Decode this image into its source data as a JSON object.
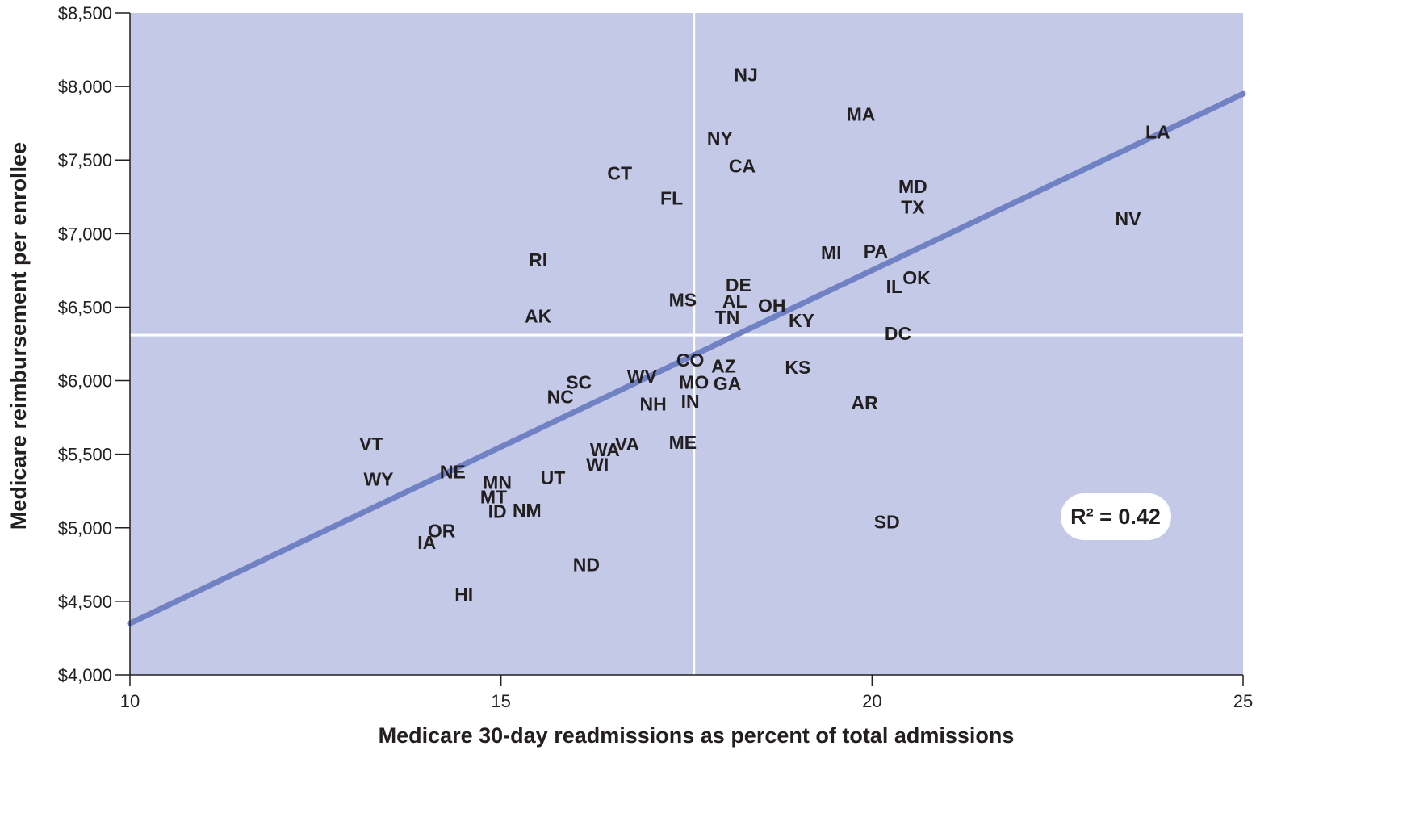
{
  "chart_data": {
    "type": "scatter",
    "title": "",
    "xlabel": "Medicare 30-day readmissions as percent of total admissions",
    "ylabel": "Medicare reimbursement per enrollee",
    "xlim": [
      10,
      25
    ],
    "ylim": [
      4000,
      8500
    ],
    "x_ticks": [
      10,
      15,
      20,
      25
    ],
    "x_tick_labels": [
      "10",
      "15",
      "20",
      "25"
    ],
    "y_ticks": [
      4000,
      4500,
      5000,
      5500,
      6000,
      6500,
      7000,
      7500,
      8000,
      8500
    ],
    "y_tick_labels": [
      "$4,000",
      "$4,500",
      "$5,000",
      "$5,500",
      "$6,000",
      "$6,500",
      "$7,000",
      "$7,500",
      "$8,000",
      "$8,500"
    ],
    "reference_lines": {
      "x": 17.6,
      "y": 6310
    },
    "trendline": {
      "x": [
        10,
        25
      ],
      "y": [
        4350,
        7950
      ]
    },
    "annotation": "R² = 0.42",
    "points": [
      {
        "label": "NJ",
        "x": 18.3,
        "y": 8080
      },
      {
        "label": "MA",
        "x": 19.85,
        "y": 7810
      },
      {
        "label": "LA",
        "x": 23.85,
        "y": 7690
      },
      {
        "label": "NY",
        "x": 17.95,
        "y": 7650
      },
      {
        "label": "CA",
        "x": 18.25,
        "y": 7460
      },
      {
        "label": "CT",
        "x": 16.6,
        "y": 7410
      },
      {
        "label": "MD",
        "x": 20.55,
        "y": 7320
      },
      {
        "label": "FL",
        "x": 17.3,
        "y": 7240
      },
      {
        "label": "TX",
        "x": 20.55,
        "y": 7180
      },
      {
        "label": "NV",
        "x": 23.45,
        "y": 7100
      },
      {
        "label": "MI",
        "x": 19.45,
        "y": 6870
      },
      {
        "label": "PA",
        "x": 20.05,
        "y": 6880
      },
      {
        "label": "RI",
        "x": 15.5,
        "y": 6820
      },
      {
        "label": "OK",
        "x": 20.6,
        "y": 6700
      },
      {
        "label": "DE",
        "x": 18.2,
        "y": 6650
      },
      {
        "label": "IL",
        "x": 20.3,
        "y": 6640
      },
      {
        "label": "MS",
        "x": 17.45,
        "y": 6550
      },
      {
        "label": "AL",
        "x": 18.15,
        "y": 6540
      },
      {
        "label": "OH",
        "x": 18.65,
        "y": 6510
      },
      {
        "label": "AK",
        "x": 15.5,
        "y": 6440
      },
      {
        "label": "TN",
        "x": 18.05,
        "y": 6430
      },
      {
        "label": "KY",
        "x": 19.05,
        "y": 6410
      },
      {
        "label": "DC",
        "x": 20.35,
        "y": 6320
      },
      {
        "label": "CO",
        "x": 17.55,
        "y": 6140
      },
      {
        "label": "AZ",
        "x": 18.0,
        "y": 6100
      },
      {
        "label": "KS",
        "x": 19.0,
        "y": 6090
      },
      {
        "label": "WV",
        "x": 16.9,
        "y": 6030
      },
      {
        "label": "SC",
        "x": 16.05,
        "y": 5990
      },
      {
        "label": "MO",
        "x": 17.6,
        "y": 5990
      },
      {
        "label": "GA",
        "x": 18.05,
        "y": 5980
      },
      {
        "label": "NC",
        "x": 15.8,
        "y": 5890
      },
      {
        "label": "IN",
        "x": 17.55,
        "y": 5860
      },
      {
        "label": "AR",
        "x": 19.9,
        "y": 5850
      },
      {
        "label": "NH",
        "x": 17.05,
        "y": 5840
      },
      {
        "label": "ME",
        "x": 17.45,
        "y": 5580
      },
      {
        "label": "VA",
        "x": 16.7,
        "y": 5570
      },
      {
        "label": "VT",
        "x": 13.25,
        "y": 5570
      },
      {
        "label": "WA",
        "x": 16.4,
        "y": 5530
      },
      {
        "label": "WI",
        "x": 16.3,
        "y": 5430
      },
      {
        "label": "NE",
        "x": 14.35,
        "y": 5380
      },
      {
        "label": "UT",
        "x": 15.7,
        "y": 5340
      },
      {
        "label": "WY",
        "x": 13.35,
        "y": 5330
      },
      {
        "label": "MN",
        "x": 14.95,
        "y": 5310
      },
      {
        "label": "MT",
        "x": 14.9,
        "y": 5210
      },
      {
        "label": "ID",
        "x": 14.95,
        "y": 5110
      },
      {
        "label": "NM",
        "x": 15.35,
        "y": 5120
      },
      {
        "label": "SD",
        "x": 20.2,
        "y": 5040
      },
      {
        "label": "OR",
        "x": 14.2,
        "y": 4980
      },
      {
        "label": "IA",
        "x": 14.0,
        "y": 4900
      },
      {
        "label": "ND",
        "x": 16.15,
        "y": 4750
      },
      {
        "label": "HI",
        "x": 14.5,
        "y": 4550
      }
    ]
  },
  "colors": {
    "plot_background": "#c3c9e6",
    "trendline": "#7081c4",
    "reference_lines": "#ffffff",
    "text": "#231f20",
    "axis": "#231f20"
  }
}
